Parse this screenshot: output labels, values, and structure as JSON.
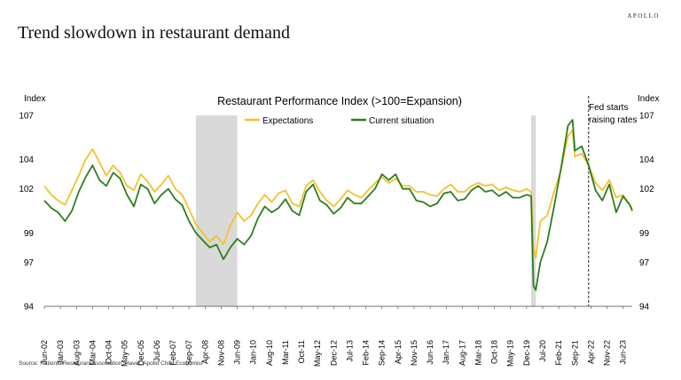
{
  "brand": "APOLLO",
  "page_title": "Trend slowdown in restaurant demand",
  "source": "Source: National Restaurant Association, Haver, Apollo Chief Economist",
  "colors": {
    "expectations": "#f2c12e",
    "current": "#2e7d1e",
    "shade": "#d9d9d9"
  },
  "chart_data": {
    "type": "line",
    "title": "Restaurant Performance Index (>100=Expansion)",
    "ylabel_left": "Index",
    "ylabel_right": "Index",
    "ylim": [
      94,
      107
    ],
    "y_ticks": [
      94,
      97,
      99,
      102,
      104,
      107
    ],
    "x_range": [
      "2002-06",
      "2023-10"
    ],
    "x_ticks": [
      "Jun-02",
      "Jan-03",
      "Aug-03",
      "Mar-04",
      "Oct-04",
      "May-05",
      "Dec-05",
      "Jul-06",
      "Feb-07",
      "Sep-07",
      "Apr-08",
      "Nov-08",
      "Jun-09",
      "Jan-10",
      "Aug-10",
      "Mar-11",
      "Oct-11",
      "May-12",
      "Dec-12",
      "Jul-13",
      "Feb-14",
      "Sep-14",
      "Apr-15",
      "Nov-15",
      "Jun-16",
      "Jan-17",
      "Aug-17",
      "Mar-18",
      "Oct-18",
      "May-19",
      "Dec-19",
      "Jul-20",
      "Feb-21",
      "Sep-21",
      "Apr-22",
      "Nov-22",
      "Jun-23"
    ],
    "legend": [
      "Expectations",
      "Current situation"
    ],
    "recessions": [
      [
        "2007-12",
        "2009-06"
      ],
      [
        "2020-02",
        "2020-04"
      ]
    ],
    "annotation": {
      "x": "2022-03",
      "text_line1": "Fed starts",
      "text_line2": "raising rates"
    },
    "series": [
      {
        "name": "Expectations",
        "points": [
          [
            "2002-06",
            102.2
          ],
          [
            "2002-09",
            101.6
          ],
          [
            "2002-12",
            101.2
          ],
          [
            "2003-03",
            100.9
          ],
          [
            "2003-06",
            101.9
          ],
          [
            "2003-09",
            102.9
          ],
          [
            "2003-12",
            104.0
          ],
          [
            "2004-03",
            104.7
          ],
          [
            "2004-06",
            103.8
          ],
          [
            "2004-09",
            102.9
          ],
          [
            "2004-12",
            103.6
          ],
          [
            "2005-03",
            103.1
          ],
          [
            "2005-06",
            102.2
          ],
          [
            "2005-09",
            101.9
          ],
          [
            "2005-12",
            103.0
          ],
          [
            "2006-03",
            102.5
          ],
          [
            "2006-06",
            101.8
          ],
          [
            "2006-09",
            102.3
          ],
          [
            "2006-12",
            102.9
          ],
          [
            "2007-03",
            102.0
          ],
          [
            "2007-06",
            101.6
          ],
          [
            "2007-09",
            100.6
          ],
          [
            "2007-12",
            99.6
          ],
          [
            "2008-03",
            99.0
          ],
          [
            "2008-06",
            98.4
          ],
          [
            "2008-09",
            98.8
          ],
          [
            "2008-12",
            98.2
          ],
          [
            "2009-03",
            99.5
          ],
          [
            "2009-06",
            100.4
          ],
          [
            "2009-09",
            99.8
          ],
          [
            "2009-12",
            100.2
          ],
          [
            "2010-03",
            101.0
          ],
          [
            "2010-06",
            101.6
          ],
          [
            "2010-09",
            101.1
          ],
          [
            "2010-12",
            101.7
          ],
          [
            "2011-03",
            101.9
          ],
          [
            "2011-06",
            101.0
          ],
          [
            "2011-09",
            100.8
          ],
          [
            "2011-12",
            102.2
          ],
          [
            "2012-03",
            102.6
          ],
          [
            "2012-06",
            101.8
          ],
          [
            "2012-09",
            101.2
          ],
          [
            "2012-12",
            100.8
          ],
          [
            "2013-03",
            101.3
          ],
          [
            "2013-06",
            101.9
          ],
          [
            "2013-09",
            101.6
          ],
          [
            "2013-12",
            101.4
          ],
          [
            "2014-03",
            101.9
          ],
          [
            "2014-06",
            102.4
          ],
          [
            "2014-09",
            102.8
          ],
          [
            "2014-12",
            102.4
          ],
          [
            "2015-03",
            102.7
          ],
          [
            "2015-06",
            102.2
          ],
          [
            "2015-09",
            102.2
          ],
          [
            "2015-12",
            101.8
          ],
          [
            "2016-03",
            101.8
          ],
          [
            "2016-06",
            101.6
          ],
          [
            "2016-09",
            101.5
          ],
          [
            "2016-12",
            102.0
          ],
          [
            "2017-03",
            102.3
          ],
          [
            "2017-06",
            101.8
          ],
          [
            "2017-09",
            101.8
          ],
          [
            "2017-12",
            102.2
          ],
          [
            "2018-03",
            102.4
          ],
          [
            "2018-06",
            102.2
          ],
          [
            "2018-09",
            102.3
          ],
          [
            "2018-12",
            101.9
          ],
          [
            "2019-03",
            102.1
          ],
          [
            "2019-06",
            101.9
          ],
          [
            "2019-09",
            101.8
          ],
          [
            "2019-12",
            102.0
          ],
          [
            "2020-02",
            101.8
          ],
          [
            "2020-03",
            97.9
          ],
          [
            "2020-04",
            97.3
          ],
          [
            "2020-06",
            99.8
          ],
          [
            "2020-09",
            100.2
          ],
          [
            "2020-12",
            101.8
          ],
          [
            "2021-03",
            103.3
          ],
          [
            "2021-06",
            105.6
          ],
          [
            "2021-08",
            106.0
          ],
          [
            "2021-09",
            104.2
          ],
          [
            "2021-12",
            104.4
          ],
          [
            "2022-03",
            103.6
          ],
          [
            "2022-06",
            102.4
          ],
          [
            "2022-09",
            101.9
          ],
          [
            "2022-12",
            102.6
          ],
          [
            "2023-03",
            101.4
          ],
          [
            "2023-06",
            101.6
          ],
          [
            "2023-09",
            100.9
          ],
          [
            "2023-10",
            100.6
          ]
        ]
      },
      {
        "name": "Current situation",
        "points": [
          [
            "2002-06",
            101.2
          ],
          [
            "2002-09",
            100.7
          ],
          [
            "2002-12",
            100.4
          ],
          [
            "2003-03",
            99.8
          ],
          [
            "2003-06",
            100.5
          ],
          [
            "2003-09",
            101.8
          ],
          [
            "2003-12",
            102.8
          ],
          [
            "2004-03",
            103.6
          ],
          [
            "2004-06",
            102.6
          ],
          [
            "2004-09",
            102.2
          ],
          [
            "2004-12",
            103.1
          ],
          [
            "2005-03",
            102.7
          ],
          [
            "2005-06",
            101.6
          ],
          [
            "2005-09",
            100.8
          ],
          [
            "2005-12",
            102.3
          ],
          [
            "2006-03",
            102.0
          ],
          [
            "2006-06",
            101.0
          ],
          [
            "2006-09",
            101.6
          ],
          [
            "2006-12",
            102.0
          ],
          [
            "2007-03",
            101.3
          ],
          [
            "2007-06",
            100.9
          ],
          [
            "2007-09",
            99.8
          ],
          [
            "2007-12",
            99.0
          ],
          [
            "2008-03",
            98.5
          ],
          [
            "2008-06",
            98.0
          ],
          [
            "2008-09",
            98.2
          ],
          [
            "2008-12",
            97.2
          ],
          [
            "2009-03",
            98.0
          ],
          [
            "2009-06",
            98.6
          ],
          [
            "2009-09",
            98.2
          ],
          [
            "2009-12",
            98.8
          ],
          [
            "2010-03",
            100.0
          ],
          [
            "2010-06",
            100.8
          ],
          [
            "2010-09",
            100.4
          ],
          [
            "2010-12",
            100.7
          ],
          [
            "2011-03",
            101.3
          ],
          [
            "2011-06",
            100.5
          ],
          [
            "2011-09",
            100.2
          ],
          [
            "2011-12",
            101.8
          ],
          [
            "2012-03",
            102.3
          ],
          [
            "2012-06",
            101.2
          ],
          [
            "2012-09",
            100.9
          ],
          [
            "2012-12",
            100.3
          ],
          [
            "2013-03",
            100.7
          ],
          [
            "2013-06",
            101.4
          ],
          [
            "2013-09",
            101.0
          ],
          [
            "2013-12",
            101.0
          ],
          [
            "2014-03",
            101.5
          ],
          [
            "2014-06",
            102.0
          ],
          [
            "2014-09",
            103.0
          ],
          [
            "2014-12",
            102.6
          ],
          [
            "2015-03",
            103.0
          ],
          [
            "2015-06",
            102.0
          ],
          [
            "2015-09",
            102.0
          ],
          [
            "2015-12",
            101.2
          ],
          [
            "2016-03",
            101.1
          ],
          [
            "2016-06",
            100.8
          ],
          [
            "2016-09",
            101.0
          ],
          [
            "2016-12",
            101.7
          ],
          [
            "2017-03",
            101.8
          ],
          [
            "2017-06",
            101.2
          ],
          [
            "2017-09",
            101.3
          ],
          [
            "2017-12",
            101.9
          ],
          [
            "2018-03",
            102.2
          ],
          [
            "2018-06",
            101.8
          ],
          [
            "2018-09",
            101.9
          ],
          [
            "2018-12",
            101.5
          ],
          [
            "2019-03",
            101.8
          ],
          [
            "2019-06",
            101.4
          ],
          [
            "2019-09",
            101.4
          ],
          [
            "2019-12",
            101.6
          ],
          [
            "2020-02",
            101.5
          ],
          [
            "2020-03",
            95.4
          ],
          [
            "2020-04",
            95.1
          ],
          [
            "2020-06",
            97.0
          ],
          [
            "2020-09",
            98.4
          ],
          [
            "2020-12",
            100.8
          ],
          [
            "2021-03",
            103.4
          ],
          [
            "2021-06",
            106.3
          ],
          [
            "2021-08",
            106.7
          ],
          [
            "2021-09",
            104.6
          ],
          [
            "2021-12",
            104.9
          ],
          [
            "2022-03",
            103.6
          ],
          [
            "2022-06",
            101.9
          ],
          [
            "2022-09",
            101.2
          ],
          [
            "2022-12",
            102.3
          ],
          [
            "2023-03",
            100.4
          ],
          [
            "2023-06",
            101.5
          ],
          [
            "2023-09",
            100.9
          ],
          [
            "2023-10",
            100.5
          ]
        ]
      }
    ]
  }
}
